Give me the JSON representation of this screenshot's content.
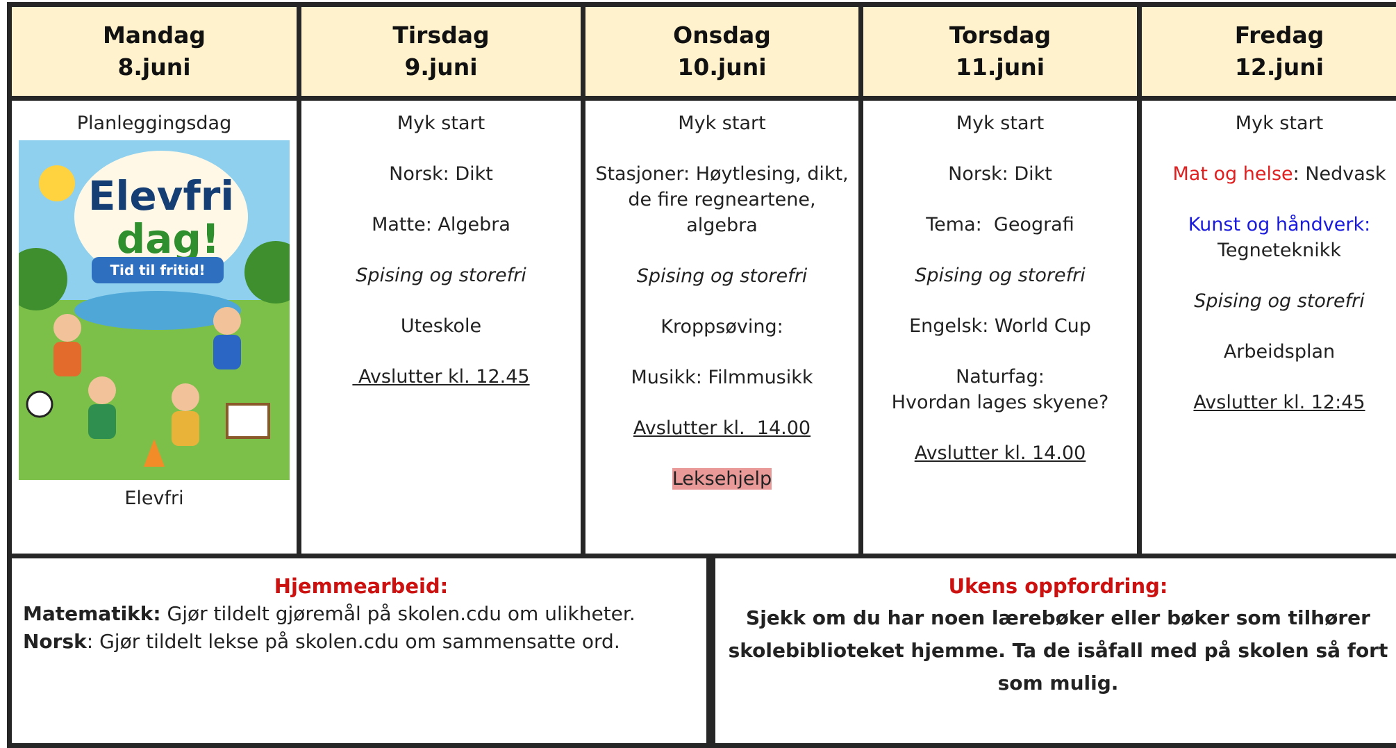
{
  "days": [
    {
      "name": "Mandag",
      "date": "8.juni",
      "items": [
        {
          "lines": [
            [
              {
                "text": "Planleggingsdag"
              }
            ]
          ]
        }
      ],
      "image": {
        "title_lines": [
          "Elevfri",
          "dag!"
        ],
        "subtitle": "Tid til fritid!"
      },
      "caption": "Elevfri"
    },
    {
      "name": "Tirsdag",
      "date": "9.juni",
      "items": [
        {
          "lines": [
            [
              {
                "text": "Myk start"
              }
            ]
          ]
        },
        {
          "lines": [
            [
              {
                "text": "Norsk: Dikt"
              }
            ]
          ]
        },
        {
          "lines": [
            [
              {
                "text": "Matte: Algebra"
              }
            ]
          ]
        },
        {
          "lines": [
            [
              {
                "text": "Spising og storefri",
                "italic": true
              }
            ]
          ]
        },
        {
          "lines": [
            [
              {
                "text": "Uteskole"
              }
            ]
          ]
        },
        {
          "lines": [
            [
              {
                "text": " Avslutter kl. 12.45",
                "underline": true
              }
            ]
          ]
        }
      ]
    },
    {
      "name": "Onsdag",
      "date": "10.juni",
      "items": [
        {
          "lines": [
            [
              {
                "text": "Myk start"
              }
            ]
          ]
        },
        {
          "lines": [
            [
              {
                "text": "Stasjoner: Høytlesing, dikt,"
              }
            ],
            [
              {
                "text": "de fire regneartene,"
              }
            ],
            [
              {
                "text": "algebra"
              }
            ]
          ]
        },
        {
          "lines": [
            [
              {
                "text": "Spising og storefri",
                "italic": true
              }
            ]
          ]
        },
        {
          "lines": [
            [
              {
                "text": "Kroppsøving:"
              }
            ]
          ]
        },
        {
          "lines": [
            [
              {
                "text": "Musikk: Filmmusikk"
              }
            ]
          ]
        },
        {
          "lines": [
            [
              {
                "text": "Avslutter kl.  14.00",
                "underline": true
              }
            ]
          ]
        },
        {
          "lines": [
            [
              {
                "text": "Leksehjelp",
                "highlight": "#ea9999"
              }
            ]
          ]
        }
      ]
    },
    {
      "name": "Torsdag",
      "date": "11.juni",
      "items": [
        {
          "lines": [
            [
              {
                "text": "Myk start"
              }
            ]
          ]
        },
        {
          "lines": [
            [
              {
                "text": "Norsk: Dikt"
              }
            ]
          ]
        },
        {
          "lines": [
            [
              {
                "text": "Tema:  Geografi"
              }
            ]
          ]
        },
        {
          "lines": [
            [
              {
                "text": "Spising og storefri",
                "italic": true
              }
            ]
          ]
        },
        {
          "lines": [
            [
              {
                "text": "Engelsk: World Cup"
              }
            ]
          ]
        },
        {
          "lines": [
            [
              {
                "text": "Naturfag:"
              }
            ],
            [
              {
                "text": "Hvordan lages skyene?"
              }
            ]
          ]
        },
        {
          "lines": [
            [
              {
                "text": "Avslutter kl. 14.00",
                "underline": true
              }
            ]
          ]
        }
      ]
    },
    {
      "name": "Fredag",
      "date": "12.juni",
      "items": [
        {
          "lines": [
            [
              {
                "text": "Myk start"
              }
            ]
          ]
        },
        {
          "lines": [
            [
              {
                "text": "Mat og helse",
                "color": "#e02020"
              },
              {
                "text": ": Nedvask"
              }
            ]
          ]
        },
        {
          "lines": [
            [
              {
                "text": "Kunst og håndverk:",
                "color": "#1a1adc"
              }
            ],
            [
              {
                "text": "Tegneteknikk"
              }
            ]
          ]
        },
        {
          "lines": [
            [
              {
                "text": "Spising og storefri",
                "italic": true
              }
            ]
          ]
        },
        {
          "lines": [
            [
              {
                "text": "Arbeidsplan"
              }
            ]
          ]
        },
        {
          "lines": [
            [
              {
                "text": "Avslutter kl. 12:45",
                "underline": true
              }
            ]
          ]
        }
      ]
    }
  ],
  "homework": {
    "title": "Hjemmearbeid:",
    "lines": [
      {
        "label": "Matematikk:",
        "text": " Gjør tildelt gjøremål på skolen.cdu om ulikheter."
      },
      {
        "label": "Norsk",
        "text": ": Gjør tildelt lekse på skolen.cdu om sammensatte ord."
      }
    ]
  },
  "challenge": {
    "title": "Ukens oppfordring:",
    "text": "Sjekk om du har noen lærebøker eller bøker som tilhører skolebiblioteket hjemme. Ta de isåfall med på skolen så fort som mulig."
  }
}
